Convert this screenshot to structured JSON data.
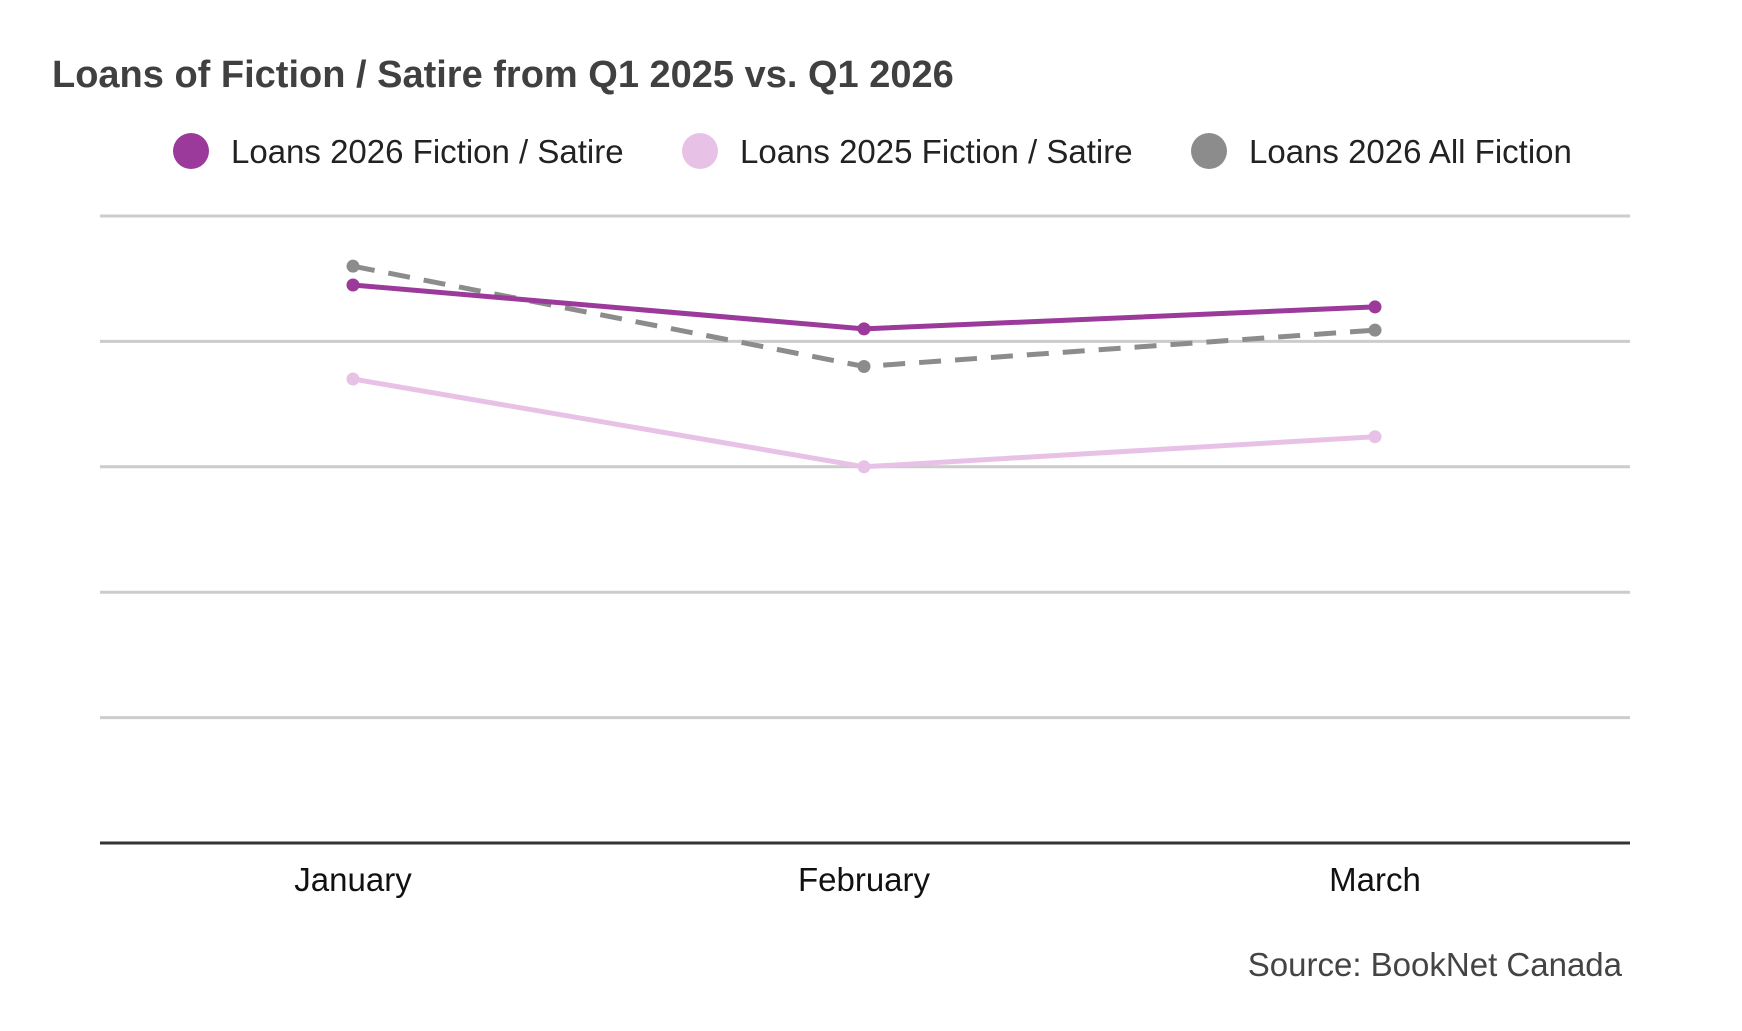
{
  "chart_data": {
    "type": "line",
    "title": "Loans of Fiction / Satire from Q1 2025 vs. Q1 2026",
    "categories": [
      "January",
      "February",
      "March"
    ],
    "series": [
      {
        "name": "Loans 2026 Fiction / Satire",
        "values": [
          0.89,
          0.82,
          0.855
        ],
        "color": "#9B3A9B",
        "line_style": "solid"
      },
      {
        "name": "Loans 2025 Fiction / Satire",
        "values": [
          0.74,
          0.6,
          0.648
        ],
        "color": "#E8C2E6",
        "line_style": "solid"
      },
      {
        "name": "Loans 2026 All Fiction",
        "values": [
          0.92,
          0.76,
          0.818
        ],
        "color": "#8C8C8C",
        "line_style": "dashed"
      }
    ],
    "ylim": [
      0,
      1
    ],
    "y_gridlines": 5,
    "grid": true,
    "y_tick_labels_visible": false,
    "legend_position": "top",
    "source": "Source: BookNet Canada"
  }
}
